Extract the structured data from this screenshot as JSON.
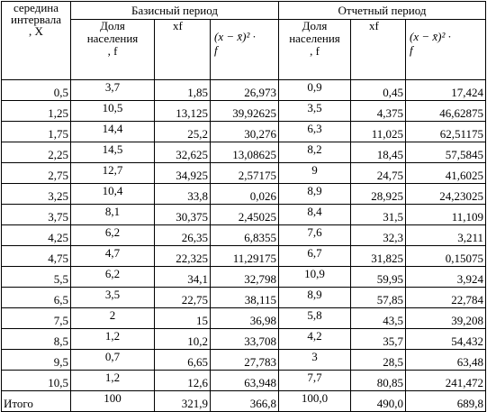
{
  "header": {
    "x_col": [
      "середина",
      "интервала",
      ", X"
    ],
    "base_period": "Базисный период",
    "report_period": "Отчетный период",
    "share_label": [
      "Доля",
      "населения",
      ", f"
    ],
    "xf_label": "xf",
    "formula_top": "(x − x̄)² ·",
    "formula_bottom": "f"
  },
  "rows": [
    {
      "x": "0,5",
      "f1": "3,7",
      "xf1": "1,85",
      "d1": "26,973",
      "f2": "0,9",
      "xf2": "0,45",
      "d2": "17,424"
    },
    {
      "x": "1,25",
      "f1": "10,5",
      "xf1": "13,125",
      "d1": "39,92625",
      "f2": "3,5",
      "xf2": "4,375",
      "d2": "46,62875"
    },
    {
      "x": "1,75",
      "f1": "14,4",
      "xf1": "25,2",
      "d1": "30,276",
      "f2": "6,3",
      "xf2": "11,025",
      "d2": "62,51175"
    },
    {
      "x": "2,25",
      "f1": "14,5",
      "xf1": "32,625",
      "d1": "13,08625",
      "f2": "8,2",
      "xf2": "18,45",
      "d2": "57,5845"
    },
    {
      "x": "2,75",
      "f1": "12,7",
      "xf1": "34,925",
      "d1": "2,57175",
      "f2": "9",
      "xf2": "24,75",
      "d2": "41,6025"
    },
    {
      "x": "3,25",
      "f1": "10,4",
      "xf1": "33,8",
      "d1": "0,026",
      "f2": "8,9",
      "xf2": "28,925",
      "d2": "24,23025"
    },
    {
      "x": "3,75",
      "f1": "8,1",
      "xf1": "30,375",
      "d1": "2,45025",
      "f2": "8,4",
      "xf2": "31,5",
      "d2": "11,109"
    },
    {
      "x": "4,25",
      "f1": "6,2",
      "xf1": "26,35",
      "d1": "6,8355",
      "f2": "7,6",
      "xf2": "32,3",
      "d2": "3,211"
    },
    {
      "x": "4,75",
      "f1": "4,7",
      "xf1": "22,325",
      "d1": "11,29175",
      "f2": "6,7",
      "xf2": "31,825",
      "d2": "0,15075"
    },
    {
      "x": "5,5",
      "f1": "6,2",
      "xf1": "34,1",
      "d1": "32,798",
      "f2": "10,9",
      "xf2": "59,95",
      "d2": "3,924"
    },
    {
      "x": "6,5",
      "f1": "3,5",
      "xf1": "22,75",
      "d1": "38,115",
      "f2": "8,9",
      "xf2": "57,85",
      "d2": "22,784"
    },
    {
      "x": "7,5",
      "f1": "2",
      "xf1": "15",
      "d1": "36,98",
      "f2": "5,8",
      "xf2": "43,5",
      "d2": "39,208"
    },
    {
      "x": "8,5",
      "f1": "1,2",
      "xf1": "10,2",
      "d1": "33,708",
      "f2": "4,2",
      "xf2": "35,7",
      "d2": "54,432"
    },
    {
      "x": "9,5",
      "f1": "0,7",
      "xf1": "6,65",
      "d1": "27,783",
      "f2": "3",
      "xf2": "28,5",
      "d2": "63,48"
    },
    {
      "x": "10,5",
      "f1": "1,2",
      "xf1": "12,6",
      "d1": "63,948",
      "f2": "7,7",
      "xf2": "80,85",
      "d2": "241,472"
    }
  ],
  "total": {
    "label": "Итого",
    "f1": "100",
    "xf1": "321,9",
    "d1": "366,8",
    "f2": "100,0",
    "xf2": "490,0",
    "d2": "689,8"
  }
}
